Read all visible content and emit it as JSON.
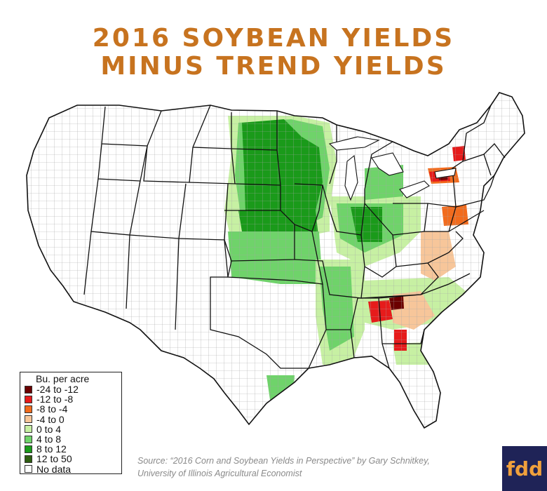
{
  "title": {
    "line1": "2016 Soybean Yields",
    "line2": "Minus Trend Yields"
  },
  "legend": {
    "title": "Bu. per acre",
    "items": [
      {
        "label": "-24 to -12",
        "color": "#6b0000"
      },
      {
        "label": "-12 to -8",
        "color": "#e61b1b"
      },
      {
        "label": "-8 to -4",
        "color": "#f26b1d"
      },
      {
        "label": "-4 to 0",
        "color": "#f7c69a"
      },
      {
        "label": "0 to 4",
        "color": "#c7f0a3"
      },
      {
        "label": "4 to 8",
        "color": "#6fd36a"
      },
      {
        "label": "8 to 12",
        "color": "#1a9a1a"
      },
      {
        "label": "12 to 50",
        "color": "#2f5e12"
      },
      {
        "label": "No data",
        "color": "#ffffff"
      }
    ]
  },
  "source": {
    "line1": "Source: “2016 Corn and Soybean Yields in Perspective” by Gary Schnitkey,",
    "line2": "University of Illinois Agricultural Economist"
  },
  "logo": {
    "text": "fdd",
    "color": "#f0a03c",
    "background": "#1f2357"
  },
  "map": {
    "subject": "United States county map",
    "colors": {
      "land": "#ffffff",
      "county_border": "#9a9a9a",
      "state_border": "#111111"
    }
  }
}
